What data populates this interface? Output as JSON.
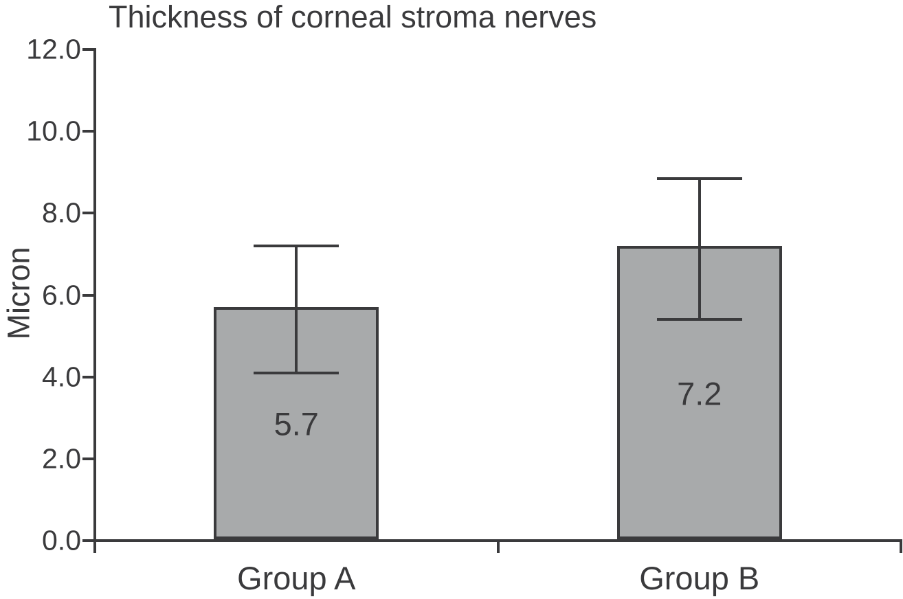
{
  "chart_data": {
    "type": "bar",
    "title": "Thickness of corneal stroma nerves",
    "ylabel": "Micron",
    "xlabel": "",
    "categories": [
      "Group A",
      "Group B"
    ],
    "values": [
      5.7,
      7.2
    ],
    "bar_value_labels": [
      "5.7",
      "7.2"
    ],
    "error_bars": [
      {
        "lower_cap": 4.1,
        "upper_cap": 7.2
      },
      {
        "lower_cap": 5.4,
        "upper_cap": 8.85
      }
    ],
    "ylim": [
      0.0,
      12.0
    ],
    "ytick_interval": 2.0,
    "ytick_labels": [
      "0.0",
      "2.0",
      "4.0",
      "6.0",
      "8.0",
      "10.0",
      "12.0"
    ],
    "grid": false,
    "legend": null,
    "bar_fill_color": "#a8aaab",
    "axis_color": "#3a3a3c",
    "text_color": "#3a3a3c",
    "background_color": "#ffffff"
  }
}
